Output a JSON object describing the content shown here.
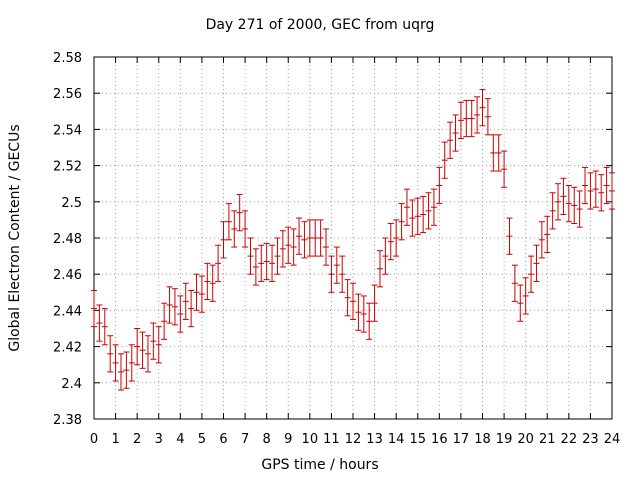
{
  "chart_data": {
    "type": "scatter",
    "title": "Day 271 of 2000, GEC from uqrg",
    "xlabel": "GPS time / hours",
    "ylabel": "Global Electron Content / GECUs",
    "xlim": [
      0,
      24
    ],
    "ylim": [
      2.38,
      2.58
    ],
    "xticks": [
      0,
      1,
      2,
      3,
      4,
      5,
      6,
      7,
      8,
      9,
      10,
      11,
      12,
      13,
      14,
      15,
      16,
      17,
      18,
      19,
      20,
      21,
      22,
      23,
      24
    ],
    "yticks": [
      2.38,
      2.4,
      2.42,
      2.44,
      2.46,
      2.48,
      2.5,
      2.52,
      2.54,
      2.56,
      2.58
    ],
    "ytick_labels": [
      "2.38",
      "2.4",
      "2.42",
      "2.44",
      "2.46",
      "2.48",
      "2.5",
      "2.52",
      "2.54",
      "2.56",
      "2.58"
    ],
    "grid": true,
    "color": "#cc0000",
    "series": [
      {
        "error_bar": 0.01,
        "points": [
          [
            0.0,
            2.441
          ],
          [
            0.25,
            2.433
          ],
          [
            0.5,
            2.431
          ],
          [
            0.75,
            2.416
          ],
          [
            1.0,
            2.411
          ],
          [
            1.25,
            2.406
          ],
          [
            1.5,
            2.407
          ],
          [
            1.75,
            2.411
          ],
          [
            2.0,
            2.42
          ],
          [
            2.25,
            2.418
          ],
          [
            2.5,
            2.416
          ],
          [
            2.75,
            2.423
          ],
          [
            3.0,
            2.421
          ],
          [
            3.25,
            2.434
          ],
          [
            3.5,
            2.443
          ],
          [
            3.75,
            2.442
          ],
          [
            4.0,
            2.438
          ],
          [
            4.25,
            2.445
          ],
          [
            4.5,
            2.441
          ],
          [
            4.75,
            2.45
          ],
          [
            5.0,
            2.449
          ],
          [
            5.25,
            2.456
          ],
          [
            5.5,
            2.455
          ],
          [
            5.75,
            2.466
          ],
          [
            6.0,
            2.479
          ],
          [
            6.25,
            2.489
          ],
          [
            6.5,
            2.485
          ],
          [
            6.75,
            2.494
          ],
          [
            7.0,
            2.485
          ],
          [
            7.25,
            2.47
          ],
          [
            7.5,
            2.464
          ],
          [
            7.75,
            2.466
          ],
          [
            8.0,
            2.467
          ],
          [
            8.25,
            2.466
          ],
          [
            8.5,
            2.47
          ],
          [
            8.75,
            2.474
          ],
          [
            9.0,
            2.476
          ],
          [
            9.25,
            2.475
          ],
          [
            9.5,
            2.481
          ],
          [
            9.75,
            2.479
          ],
          [
            10.0,
            2.48
          ],
          [
            10.25,
            2.48
          ],
          [
            10.5,
            2.48
          ],
          [
            10.75,
            2.475
          ],
          [
            11.0,
            2.46
          ],
          [
            11.25,
            2.465
          ],
          [
            11.5,
            2.46
          ],
          [
            11.75,
            2.447
          ],
          [
            12.0,
            2.445
          ],
          [
            12.25,
            2.439
          ],
          [
            12.5,
            2.438
          ],
          [
            12.75,
            2.434
          ],
          [
            13.0,
            2.444
          ],
          [
            13.25,
            2.463
          ],
          [
            13.5,
            2.47
          ],
          [
            13.75,
            2.478
          ],
          [
            14.0,
            2.48
          ],
          [
            14.25,
            2.489
          ],
          [
            14.5,
            2.497
          ],
          [
            14.75,
            2.491
          ],
          [
            15.0,
            2.492
          ],
          [
            15.25,
            2.493
          ],
          [
            15.5,
            2.495
          ],
          [
            15.75,
            2.497
          ],
          [
            16.0,
            2.509
          ],
          [
            16.25,
            2.523
          ],
          [
            16.5,
            2.534
          ],
          [
            16.75,
            2.538
          ],
          [
            17.0,
            2.545
          ],
          [
            17.25,
            2.546
          ],
          [
            17.5,
            2.546
          ],
          [
            17.75,
            2.548
          ],
          [
            18.0,
            2.552
          ],
          [
            18.25,
            2.547
          ],
          [
            18.5,
            2.527
          ],
          [
            18.75,
            2.527
          ],
          [
            19.0,
            2.518
          ],
          [
            19.25,
            2.481
          ],
          [
            19.5,
            2.455
          ],
          [
            19.75,
            2.444
          ],
          [
            20.0,
            2.448
          ],
          [
            20.25,
            2.46
          ],
          [
            20.5,
            2.466
          ],
          [
            20.75,
            2.479
          ],
          [
            21.0,
            2.482
          ],
          [
            21.25,
            2.495
          ],
          [
            21.5,
            2.5
          ],
          [
            21.75,
            2.503
          ],
          [
            22.0,
            2.499
          ],
          [
            22.25,
            2.498
          ],
          [
            22.5,
            2.496
          ],
          [
            22.75,
            2.509
          ],
          [
            23.0,
            2.506
          ],
          [
            23.25,
            2.507
          ],
          [
            23.5,
            2.505
          ],
          [
            23.75,
            2.509
          ],
          [
            24.0,
            2.506
          ]
        ]
      }
    ]
  }
}
